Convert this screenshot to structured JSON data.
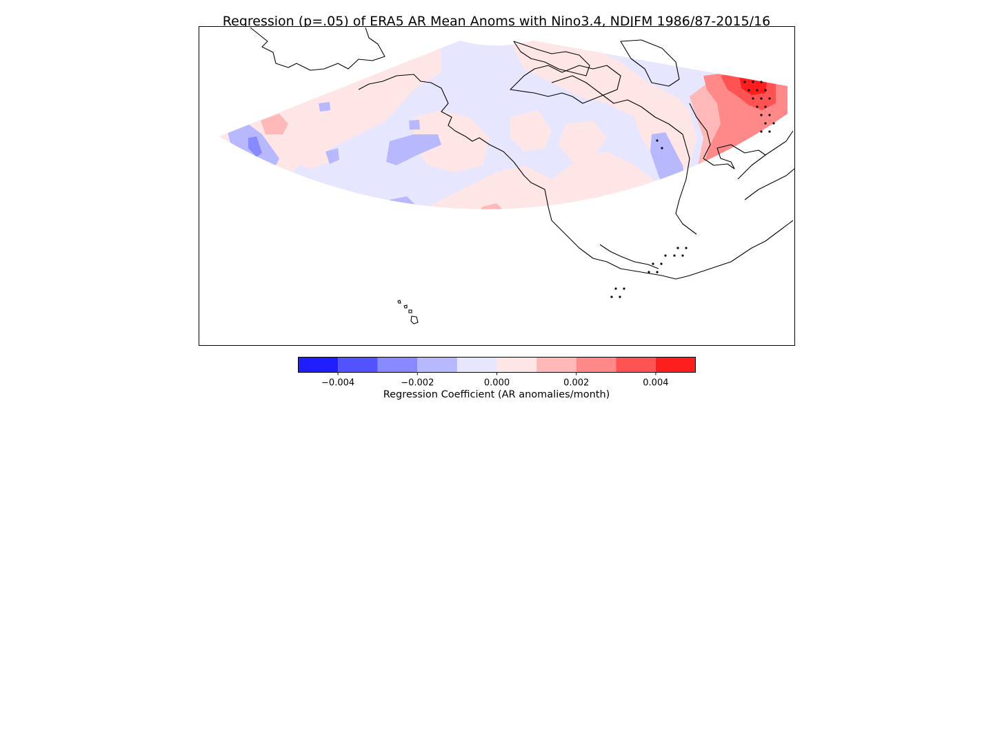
{
  "figure": {
    "title": "Regression (p=.05) of ERA5 AR Mean Anoms with Nino3.4, NDJFM 1986/87-2015/16"
  },
  "colorbar": {
    "label": "Regression Coefficient (AR anomalies/month)",
    "levels": [
      -0.005,
      -0.004,
      -0.003,
      -0.002,
      -0.001,
      0.0,
      0.001,
      0.002,
      0.003,
      0.004,
      0.005
    ],
    "colors": [
      "#1e1eff",
      "#5252ff",
      "#8888ff",
      "#b8b8ff",
      "#e6e6ff",
      "#ffe6e6",
      "#ffb8b8",
      "#ff8888",
      "#ff5252",
      "#ff1e1e"
    ],
    "tick_labels": [
      "−0.004",
      "−0.002",
      "0.000",
      "0.002",
      "0.004"
    ],
    "tick_values": [
      -0.004,
      -0.002,
      0.0,
      0.002,
      0.004
    ]
  },
  "map": {
    "significance_stippling": "p=.05",
    "background_color": "#ffffff"
  }
}
